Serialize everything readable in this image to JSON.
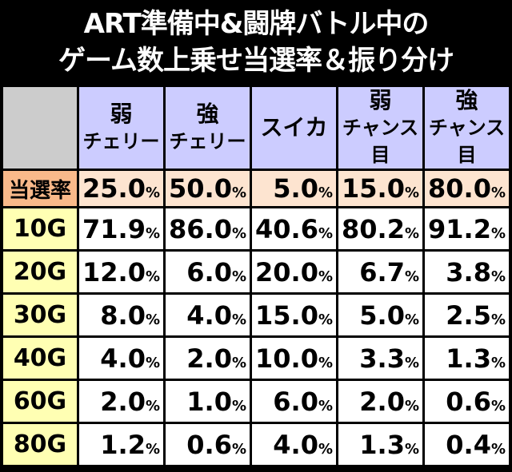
{
  "header": {
    "title_lines": [
      "ART準備中&闘牌バトル中の",
      "ゲーム数上乗せ当選率＆振り分け"
    ]
  },
  "table": {
    "unit": "%",
    "columns": [
      [
        "弱",
        "チェリー"
      ],
      [
        "強",
        "チェリー"
      ],
      [
        "スイカ"
      ],
      [
        "弱",
        "チャンス目"
      ],
      [
        "強",
        "チャンス目"
      ]
    ],
    "rows": [
      [
        "当選率",
        "25.0",
        "50.0",
        "5.0",
        "15.0",
        "80.0"
      ],
      [
        "10G",
        "71.9",
        "86.0",
        "40.6",
        "80.2",
        "91.2"
      ],
      [
        "20G",
        "12.0",
        "6.0",
        "20.0",
        "6.7",
        "3.8"
      ],
      [
        "30G",
        "8.0",
        "4.0",
        "15.0",
        "5.0",
        "2.5"
      ],
      [
        "40G",
        "4.0",
        "2.0",
        "10.0",
        "3.3",
        "1.3"
      ],
      [
        "60G",
        "2.0",
        "1.0",
        "6.0",
        "2.0",
        "0.6"
      ],
      [
        "80G",
        "1.2",
        "0.6",
        "4.0",
        "1.3",
        "0.4"
      ]
    ]
  }
}
